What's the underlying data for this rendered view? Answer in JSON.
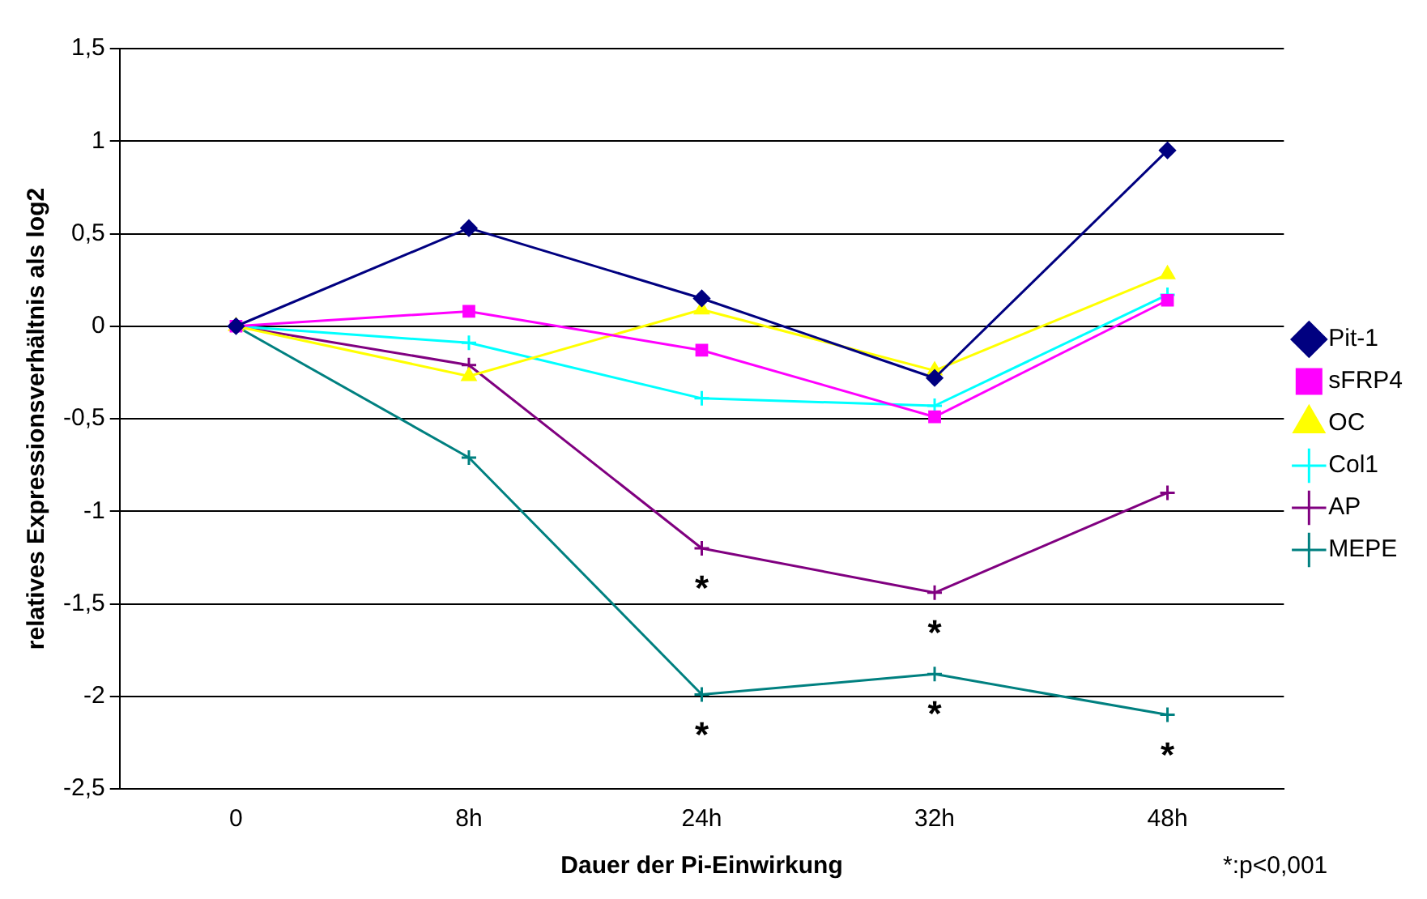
{
  "chart_data": {
    "type": "line",
    "xlabel": "Dauer der Pi-Einwirkung",
    "ylabel": "relatives Expressionsverhältnis als log2",
    "categories": [
      "0",
      "8h",
      "24h",
      "32h",
      "48h"
    ],
    "series": [
      {
        "name": "Pit-1",
        "color": "#000080",
        "marker": "diamond",
        "values": [
          0,
          0.53,
          0.15,
          -0.28,
          0.95
        ]
      },
      {
        "name": "sFRP4",
        "color": "#ff00ff",
        "marker": "square",
        "values": [
          0,
          0.08,
          -0.13,
          -0.49,
          0.14
        ]
      },
      {
        "name": "OC",
        "color": "#ffff00",
        "marker": "triangle",
        "values": [
          0,
          -0.27,
          0.09,
          -0.24,
          0.28
        ]
      },
      {
        "name": "Col1",
        "color": "#00ffff",
        "marker": "cross",
        "values": [
          0,
          -0.09,
          -0.39,
          -0.43,
          0.17
        ]
      },
      {
        "name": "AP",
        "color": "#800080",
        "marker": "cross",
        "values": [
          0,
          -0.21,
          -1.2,
          -1.44,
          -0.9
        ]
      },
      {
        "name": "MEPE",
        "color": "#008080",
        "marker": "cross",
        "values": [
          0,
          -0.71,
          -1.99,
          -1.88,
          -2.1
        ]
      }
    ],
    "ylim": [
      -2.5,
      1.5
    ],
    "yticks": [
      {
        "value": -2.5,
        "label": "-2,5"
      },
      -2,
      {
        "value": -1.5,
        "label": "-1,5"
      },
      -1,
      {
        "value": -0.5,
        "label": "-0,5"
      },
      0,
      {
        "value": 0.5,
        "label": "0,5"
      },
      1,
      {
        "value": 1.5,
        "label": "1,5"
      }
    ],
    "grid": "y",
    "legend": "right",
    "annotations": [
      {
        "text": "*",
        "x": "24h",
        "y": -1.2
      },
      {
        "text": "*",
        "x": "24h",
        "y": -1.99
      },
      {
        "text": "*",
        "x": "32h",
        "y": -1.44
      },
      {
        "text": "*",
        "x": "32h",
        "y": -1.88
      },
      {
        "text": "*",
        "x": "48h",
        "y": -2.1
      },
      "*:p<0,001"
    ]
  }
}
